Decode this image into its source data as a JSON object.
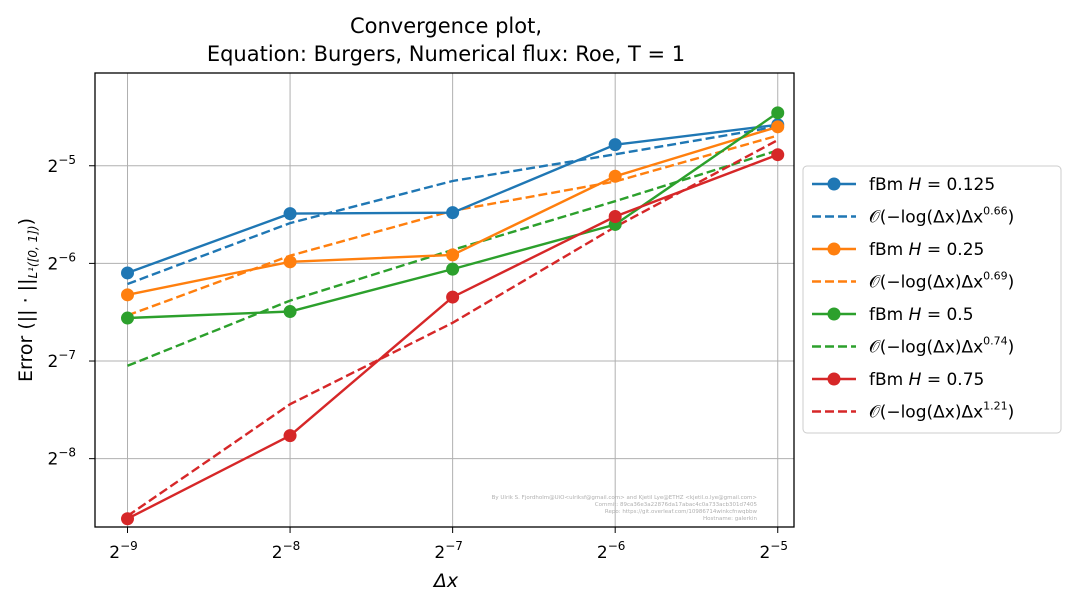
{
  "chart_data": {
    "type": "line",
    "title_line1": "Convergence plot,",
    "title_line2": "Equation: Burgers, Numerical flux: Roe, T = 1",
    "xlabel": "Δx",
    "ylabel": "Error (|| · ||",
    "ylabel_sub": "L¹([0, 1])",
    "ylabel_close": ")",
    "xscale": "log2",
    "yscale": "log2",
    "x": [
      0.001953125,
      0.00390625,
      0.0078125,
      0.015625,
      0.03125
    ],
    "x_ticks": [
      {
        "base": "2",
        "exp": "−9"
      },
      {
        "base": "2",
        "exp": "−8"
      },
      {
        "base": "2",
        "exp": "−7"
      },
      {
        "base": "2",
        "exp": "−6"
      },
      {
        "base": "2",
        "exp": "−5"
      }
    ],
    "y_ticks": [
      {
        "base": "2",
        "exp": "−5",
        "value": 0.03125
      },
      {
        "base": "2",
        "exp": "−6",
        "value": 0.015625
      },
      {
        "base": "2",
        "exp": "−7",
        "value": 0.0078125
      },
      {
        "base": "2",
        "exp": "−8",
        "value": 0.00390625
      }
    ],
    "xlim_log2": [
      -9.2,
      -4.9
    ],
    "ylim_log2": [
      -8.7,
      -4.05
    ],
    "grid": true,
    "legend_position": "right, outside plot",
    "series": [
      {
        "name": "fBm H = 0.125",
        "legend_prefix": "fBm ",
        "legend_var": "H",
        "legend_value": " = 0.125",
        "color": "#1f77b4",
        "values": [
          0.0146,
          0.02225,
          0.0224,
          0.0363,
          0.0418
        ],
        "fit": {
          "legend_text": "𝒪(−log(Δx)Δx",
          "legend_exp": "0.66",
          "legend_close": ")",
          "values": [
            0.0135,
            0.0208,
            0.02805,
            0.0339,
            0.0413
          ]
        }
      },
      {
        "name": "fBm H = 0.25",
        "legend_prefix": "fBm ",
        "legend_var": "H",
        "legend_value": " = 0.25",
        "color": "#ff7f0e",
        "values": [
          0.0125,
          0.0158,
          0.0166,
          0.029,
          0.0412
        ],
        "fit": {
          "legend_text": "𝒪(−log(Δx)Δx",
          "legend_exp": "0.69",
          "legend_close": ")",
          "values": [
            0.0108,
            0.0165,
            0.0227,
            0.02795,
            0.0387
          ]
        }
      },
      {
        "name": "fBm H = 0.5",
        "legend_prefix": "fBm ",
        "legend_var": "H",
        "legend_value": " = 0.5",
        "color": "#2ca02c",
        "values": [
          0.0106,
          0.0111,
          0.015,
          0.0206,
          0.0455
        ],
        "fit": {
          "legend_text": "𝒪(−log(Δx)Δx",
          "legend_exp": "0.74",
          "legend_close": ")",
          "values": [
            0.00755,
            0.012,
            0.0172,
            0.0243,
            0.03485
          ]
        }
      },
      {
        "name": "fBm H = 0.75",
        "legend_prefix": "fBm ",
        "legend_var": "H",
        "legend_value": " = 0.75",
        "color": "#d62728",
        "values": [
          0.00255,
          0.0046,
          0.0123,
          0.0218,
          0.0338
        ],
        "fit": {
          "legend_text": "𝒪(−log(Δx)Δx",
          "legend_exp": "1.21",
          "legend_close": ")",
          "values": [
            0.0026,
            0.00575,
            0.01025,
            0.02025,
            0.0375
          ]
        }
      }
    ],
    "watermark_lines": [
      "By Ulrik S. Fjordholm@UiO<ulriksf@gmail.com> and Kjetil Lye@ETHZ <kjetil.o.lye@gmail.com>",
      "Commit: 89ca36e3a22876da17abac4c0a733acb301d7405",
      "Repo: https://git.overleaf.com/10986714winkcfnwqbbw",
      "Hostname: galerkin"
    ]
  }
}
